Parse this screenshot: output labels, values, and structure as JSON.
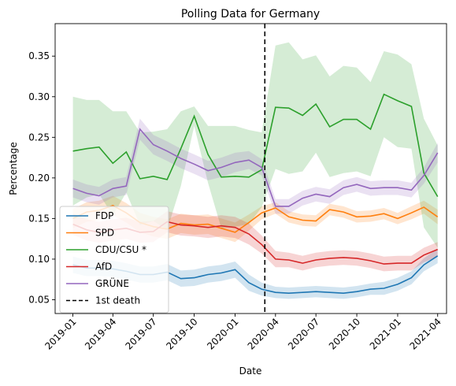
{
  "chart_data": {
    "type": "line",
    "title": "Polling Data for Germany",
    "xlabel": "Date",
    "ylabel": "Percentage",
    "xlim": [
      "2018-11-22",
      "2021-04-21"
    ],
    "ylim": [
      0.033,
      0.39
    ],
    "grid": false,
    "legend_position": "lower left",
    "x_tick_labels": [
      "2019-01",
      "2019-04",
      "2019-07",
      "2019-10",
      "2020-01",
      "2020-04",
      "2020-07",
      "2020-10",
      "2021-01",
      "2021-04"
    ],
    "x_ticks": [
      "2019-01-01",
      "2019-04-01",
      "2019-07-01",
      "2019-10-01",
      "2020-01-01",
      "2020-04-01",
      "2020-07-01",
      "2020-10-01",
      "2021-01-01",
      "2021-04-01"
    ],
    "y_ticks": [
      0.05,
      0.1,
      0.15,
      0.2,
      0.25,
      0.3,
      0.35
    ],
    "y_tick_labels": [
      "0.05",
      "0.10",
      "0.15",
      "0.20",
      "0.25",
      "0.30",
      "0.35"
    ],
    "x": [
      "2019-01-01",
      "2019-02-01",
      "2019-03-01",
      "2019-04-01",
      "2019-05-01",
      "2019-06-01",
      "2019-07-01",
      "2019-08-01",
      "2019-09-01",
      "2019-10-01",
      "2019-11-01",
      "2019-12-01",
      "2020-01-01",
      "2020-02-01",
      "2020-03-01",
      "2020-04-01",
      "2020-05-01",
      "2020-06-01",
      "2020-07-01",
      "2020-08-01",
      "2020-09-01",
      "2020-10-01",
      "2020-11-01",
      "2020-12-01",
      "2021-01-01",
      "2021-02-01",
      "2021-03-01",
      "2021-04-01"
    ],
    "series": [
      {
        "name": "FDP",
        "color": "#1f77b4",
        "values": [
          0.093,
          0.089,
          0.089,
          0.088,
          0.085,
          0.081,
          0.081,
          0.084,
          0.076,
          0.077,
          0.081,
          0.083,
          0.087,
          0.071,
          0.063,
          0.059,
          0.058,
          0.059,
          0.06,
          0.059,
          0.058,
          0.06,
          0.063,
          0.064,
          0.069,
          0.077,
          0.093,
          0.104
        ],
        "band": [
          0.01,
          0.01,
          0.01,
          0.01,
          0.01,
          0.01,
          0.01,
          0.01,
          0.01,
          0.01,
          0.01,
          0.01,
          0.01,
          0.01,
          0.008,
          0.007,
          0.007,
          0.007,
          0.007,
          0.007,
          0.007,
          0.007,
          0.007,
          0.008,
          0.008,
          0.008,
          0.008,
          0.009
        ]
      },
      {
        "name": "SPD",
        "color": "#ff7f0e",
        "values": [
          0.15,
          0.158,
          0.16,
          0.166,
          0.157,
          0.145,
          0.14,
          0.137,
          0.144,
          0.142,
          0.143,
          0.138,
          0.133,
          0.145,
          0.157,
          0.163,
          0.152,
          0.148,
          0.147,
          0.161,
          0.158,
          0.152,
          0.153,
          0.156,
          0.15,
          0.157,
          0.164,
          0.152
        ],
        "band": [
          0.012,
          0.012,
          0.012,
          0.012,
          0.012,
          0.012,
          0.012,
          0.012,
          0.012,
          0.012,
          0.012,
          0.012,
          0.012,
          0.01,
          0.008,
          0.007,
          0.007,
          0.007,
          0.007,
          0.007,
          0.007,
          0.007,
          0.007,
          0.007,
          0.007,
          0.008,
          0.008,
          0.009
        ]
      },
      {
        "name": "CDU/CSU *",
        "color": "#2ca02c",
        "values": [
          0.233,
          0.236,
          0.238,
          0.218,
          0.232,
          0.199,
          0.202,
          0.198,
          0.236,
          0.276,
          0.229,
          0.201,
          0.202,
          0.201,
          0.21,
          0.287,
          0.286,
          0.277,
          0.291,
          0.263,
          0.272,
          0.272,
          0.26,
          0.303,
          0.295,
          0.288,
          0.206,
          0.177
        ],
        "band": [
          0.067,
          0.06,
          0.058,
          0.064,
          0.05,
          0.057,
          0.055,
          0.062,
          0.046,
          0.012,
          0.035,
          0.063,
          0.062,
          0.058,
          0.046,
          0.076,
          0.081,
          0.069,
          0.06,
          0.062,
          0.066,
          0.064,
          0.058,
          0.053,
          0.057,
          0.052,
          0.067,
          0.063
        ]
      },
      {
        "name": "AfD",
        "color": "#d62728",
        "values": [
          0.143,
          0.136,
          0.133,
          0.136,
          0.138,
          0.133,
          0.134,
          0.146,
          0.142,
          0.141,
          0.139,
          0.141,
          0.139,
          0.131,
          0.118,
          0.1,
          0.099,
          0.095,
          0.099,
          0.101,
          0.102,
          0.101,
          0.098,
          0.094,
          0.095,
          0.095,
          0.105,
          0.112
        ],
        "band": [
          0.013,
          0.013,
          0.013,
          0.013,
          0.013,
          0.013,
          0.013,
          0.013,
          0.013,
          0.013,
          0.013,
          0.013,
          0.013,
          0.013,
          0.011,
          0.01,
          0.009,
          0.009,
          0.009,
          0.009,
          0.009,
          0.009,
          0.009,
          0.009,
          0.009,
          0.009,
          0.009,
          0.009
        ]
      },
      {
        "name": "GRÜNE",
        "color": "#9467bd",
        "values": [
          0.187,
          0.181,
          0.178,
          0.187,
          0.19,
          0.26,
          0.241,
          0.233,
          0.224,
          0.217,
          0.209,
          0.213,
          0.219,
          0.222,
          0.213,
          0.165,
          0.165,
          0.175,
          0.18,
          0.177,
          0.188,
          0.192,
          0.187,
          0.188,
          0.188,
          0.185,
          0.203,
          0.231
        ],
        "band": [
          0.011,
          0.011,
          0.011,
          0.011,
          0.011,
          0.013,
          0.012,
          0.012,
          0.012,
          0.012,
          0.012,
          0.012,
          0.012,
          0.011,
          0.01,
          0.009,
          0.009,
          0.009,
          0.009,
          0.009,
          0.009,
          0.009,
          0.009,
          0.009,
          0.009,
          0.009,
          0.01,
          0.012
        ]
      }
    ],
    "vline": {
      "x": "2020-03-08",
      "label": "1st death",
      "color": "#000000"
    }
  }
}
